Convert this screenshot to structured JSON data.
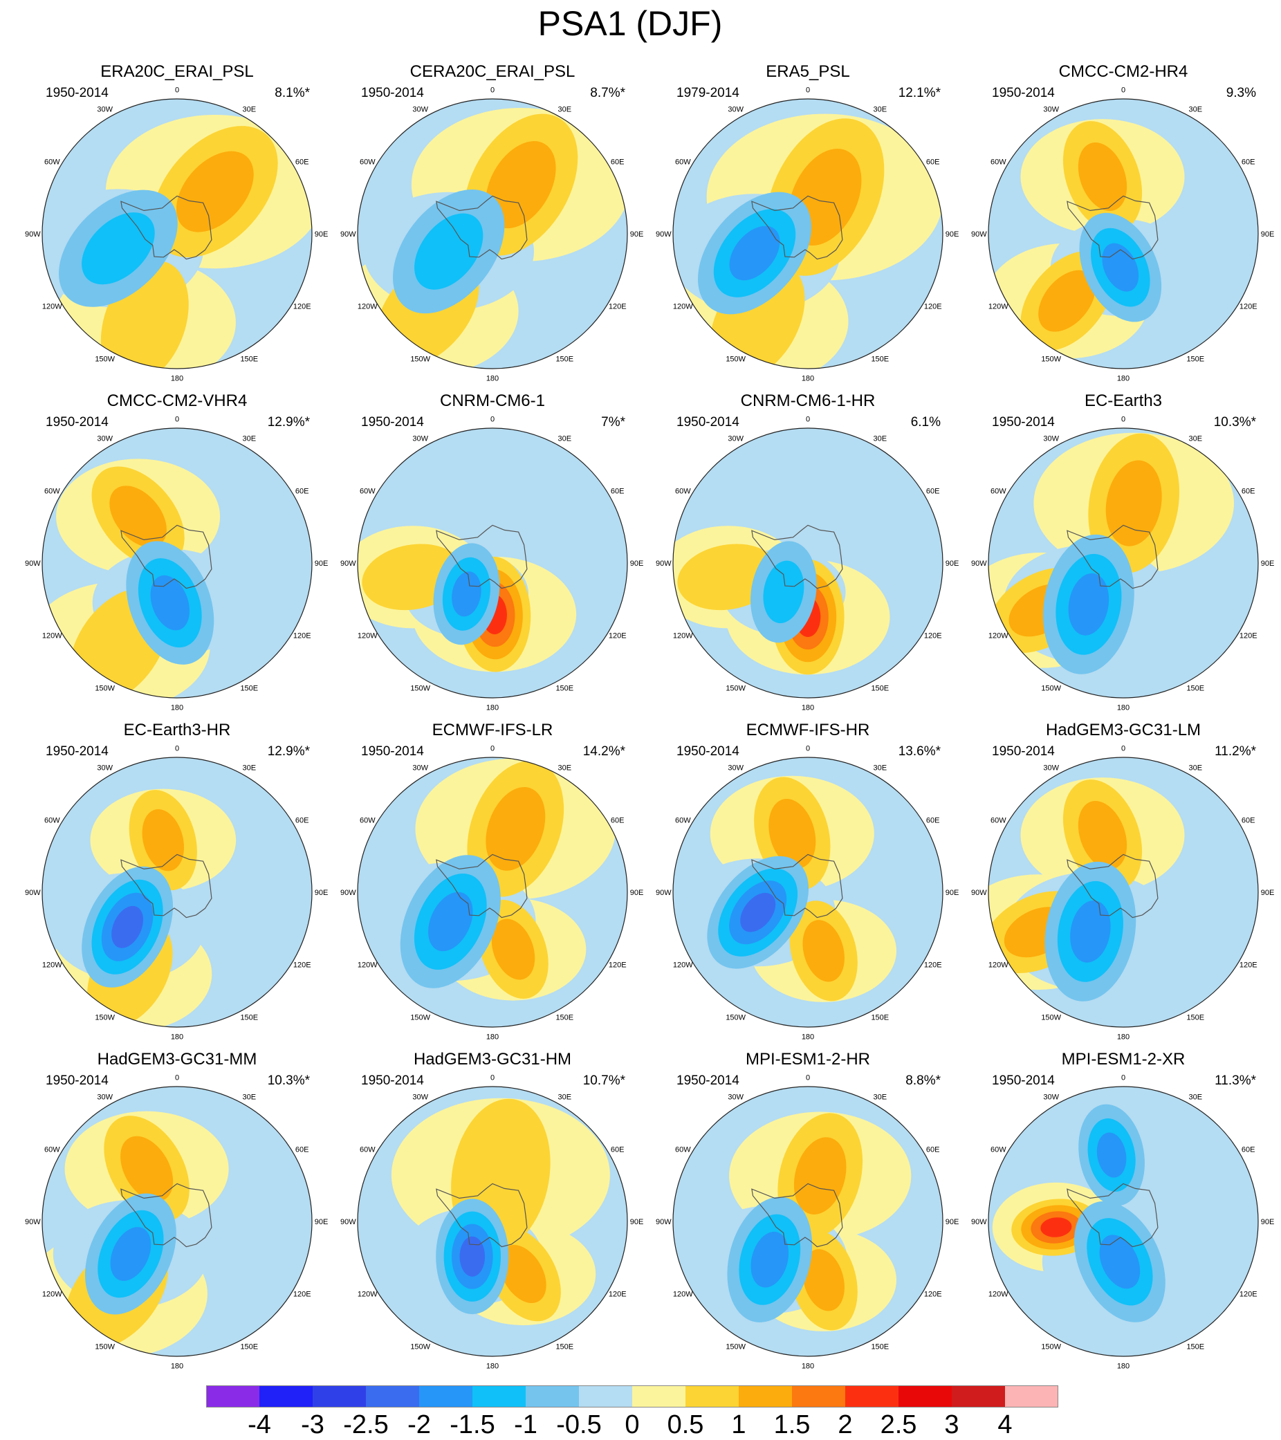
{
  "title": "PSA1 (DJF)",
  "lon_labels": [
    "0",
    "30E",
    "60E",
    "90E",
    "120E",
    "150E",
    "180",
    "150W",
    "120W",
    "90W",
    "60W",
    "30W"
  ],
  "panels": [
    {
      "title": "ERA20C_ERAI_PSL",
      "period": "1950-2014",
      "variance": "8.1%*",
      "neg": {
        "lon": -104,
        "r": 0.45,
        "strength": 2,
        "size": 0.55
      },
      "pos": {
        "lon": 42,
        "r": 0.42,
        "strength": 2,
        "size": 0.6
      },
      "pos2": {
        "lon": -160,
        "r": 0.7,
        "strength": 1,
        "size": 0.5
      }
    },
    {
      "title": "CERA20C_ERAI_PSL",
      "period": "1950-2014",
      "variance": "8.7%*",
      "neg": {
        "lon": -112,
        "r": 0.35,
        "strength": 2,
        "size": 0.55
      },
      "pos": {
        "lon": 30,
        "r": 0.42,
        "strength": 2,
        "size": 0.6
      },
      "pos2": {
        "lon": -140,
        "r": 0.75,
        "strength": 1,
        "size": 0.5
      }
    },
    {
      "title": "ERA5_PSL",
      "period": "1979-2014",
      "variance": "12.1%*",
      "neg": {
        "lon": -110,
        "r": 0.42,
        "strength": 3,
        "size": 0.55
      },
      "pos": {
        "lon": 25,
        "r": 0.3,
        "strength": 2,
        "size": 0.65
      },
      "pos2": {
        "lon": -150,
        "r": 0.75,
        "strength": 1,
        "size": 0.5
      }
    },
    {
      "title": "CMCC-CM2-HR4",
      "period": "1950-2014",
      "variance": "9.3%",
      "neg": {
        "lon": -175,
        "r": 0.25,
        "strength": 3,
        "size": 0.45
      },
      "pos": {
        "lon": -20,
        "r": 0.45,
        "strength": 2,
        "size": 0.45
      },
      "pos2": {
        "lon": -140,
        "r": 0.65,
        "strength": 2,
        "size": 0.45
      }
    },
    {
      "title": "CMCC-CM2-VHR4",
      "period": "1950-2014",
      "variance": "12.9%*",
      "neg": {
        "lon": -170,
        "r": 0.3,
        "strength": 3,
        "size": 0.5
      },
      "pos": {
        "lon": -40,
        "r": 0.45,
        "strength": 2,
        "size": 0.45
      },
      "pos2": {
        "lon": -145,
        "r": 0.75,
        "strength": 1,
        "size": 0.5
      }
    },
    {
      "title": "CNRM-CM6-1",
      "period": "1950-2014",
      "variance": "7%*",
      "neg": {
        "lon": -140,
        "r": 0.3,
        "strength": 3,
        "size": 0.4
      },
      "pos": {
        "lon": 178,
        "r": 0.38,
        "strength": 4,
        "size": 0.45
      },
      "pos2": {
        "lon": -100,
        "r": 0.6,
        "strength": 1,
        "size": 0.4
      }
    },
    {
      "title": "CNRM-CM6-1-HR",
      "period": "1950-2014",
      "variance": "6.1%",
      "neg": {
        "lon": -140,
        "r": 0.28,
        "strength": 2,
        "size": 0.4
      },
      "pos": {
        "lon": 180,
        "r": 0.4,
        "strength": 4,
        "size": 0.45
      },
      "pos2": {
        "lon": -100,
        "r": 0.6,
        "strength": 1,
        "size": 0.4
      }
    },
    {
      "title": "EC-Earth3",
      "period": "1950-2014",
      "variance": "10.3%*",
      "neg": {
        "lon": -140,
        "r": 0.4,
        "strength": 3,
        "size": 0.55
      },
      "pos": {
        "lon": 10,
        "r": 0.45,
        "strength": 2,
        "size": 0.55
      },
      "pos2": {
        "lon": -120,
        "r": 0.7,
        "strength": 2,
        "size": 0.45
      }
    },
    {
      "title": "EC-Earth3-HR",
      "period": "1950-2014",
      "variance": "12.9%*",
      "neg": {
        "lon": -125,
        "r": 0.45,
        "strength": 4,
        "size": 0.5
      },
      "pos": {
        "lon": -15,
        "r": 0.4,
        "strength": 2,
        "size": 0.4
      },
      "pos2": {
        "lon": -150,
        "r": 0.7,
        "strength": 1,
        "size": 0.45
      }
    },
    {
      "title": "ECMWF-IFS-LR",
      "period": "1950-2014",
      "variance": "14.2%*",
      "neg": {
        "lon": -125,
        "r": 0.38,
        "strength": 3,
        "size": 0.55
      },
      "pos": {
        "lon": 20,
        "r": 0.5,
        "strength": 2,
        "size": 0.55
      },
      "pos2": {
        "lon": 160,
        "r": 0.45,
        "strength": 2,
        "size": 0.4
      }
    },
    {
      "title": "ECMWF-IFS-HR",
      "period": "1950-2014",
      "variance": "13.6%*",
      "neg": {
        "lon": -112,
        "r": 0.4,
        "strength": 4,
        "size": 0.5
      },
      "pos": {
        "lon": -15,
        "r": 0.45,
        "strength": 2,
        "size": 0.45
      },
      "pos2": {
        "lon": 165,
        "r": 0.45,
        "strength": 2,
        "size": 0.4
      }
    },
    {
      "title": "HadGEM3-GC31-LM",
      "period": "1950-2014",
      "variance": "11.2%*",
      "neg": {
        "lon": -140,
        "r": 0.38,
        "strength": 3,
        "size": 0.55
      },
      "pos": {
        "lon": -20,
        "r": 0.45,
        "strength": 2,
        "size": 0.45
      },
      "pos2": {
        "lon": -115,
        "r": 0.7,
        "strength": 2,
        "size": 0.45
      }
    },
    {
      "title": "HadGEM3-GC31-MM",
      "period": "1950-2014",
      "variance": "10.3%*",
      "neg": {
        "lon": -125,
        "r": 0.42,
        "strength": 3,
        "size": 0.5
      },
      "pos": {
        "lon": -30,
        "r": 0.45,
        "strength": 2,
        "size": 0.45
      },
      "pos2": {
        "lon": -140,
        "r": 0.7,
        "strength": 1,
        "size": 0.5
      }
    },
    {
      "title": "HadGEM3-GC31-HM",
      "period": "1950-2014",
      "variance": "10.7%*",
      "neg": {
        "lon": -150,
        "r": 0.3,
        "strength": 4,
        "size": 0.45
      },
      "pos": {
        "lon": 10,
        "r": 0.35,
        "strength": 1,
        "size": 0.6
      },
      "pos2": {
        "lon": 150,
        "r": 0.45,
        "strength": 2,
        "size": 0.4
      }
    },
    {
      "title": "MPI-ESM1-2-HR",
      "period": "1950-2014",
      "variance": "8.8%*",
      "neg": {
        "lon": -135,
        "r": 0.4,
        "strength": 3,
        "size": 0.5
      },
      "pos": {
        "lon": 15,
        "r": 0.35,
        "strength": 2,
        "size": 0.5
      },
      "pos2": {
        "lon": 165,
        "r": 0.45,
        "strength": 2,
        "size": 0.4
      }
    },
    {
      "title": "MPI-ESM1-2-XR",
      "period": "1950-2014",
      "variance": "11.3%*",
      "neg": {
        "lon": -175,
        "r": 0.3,
        "strength": 3,
        "size": 0.5
      },
      "pos": {
        "lon": -95,
        "r": 0.5,
        "strength": 4,
        "size": 0.35
      },
      "pos2": {
        "lon": -10,
        "r": 0.5,
        "strength": -3,
        "size": 0.4
      }
    }
  ],
  "colorbar": {
    "labels": [
      "-4",
      "-3",
      "-2.5",
      "-2",
      "-1.5",
      "-1",
      "-0.5",
      "0",
      "0.5",
      "1",
      "1.5",
      "2",
      "2.5",
      "3",
      "4"
    ],
    "colors": [
      "#8A2BE8",
      "#2020F8",
      "#3040E8",
      "#3A6CF0",
      "#2696F8",
      "#10C0F8",
      "#74C4EE",
      "#B4DCF2",
      "#FCF49C",
      "#FCD434",
      "#FCAC0C",
      "#FC7810",
      "#FC3010",
      "#E80808",
      "#D01C1C",
      "#FCB4B4"
    ],
    "neutral_color": "#B4DCF2",
    "coast_color": "#555555"
  }
}
